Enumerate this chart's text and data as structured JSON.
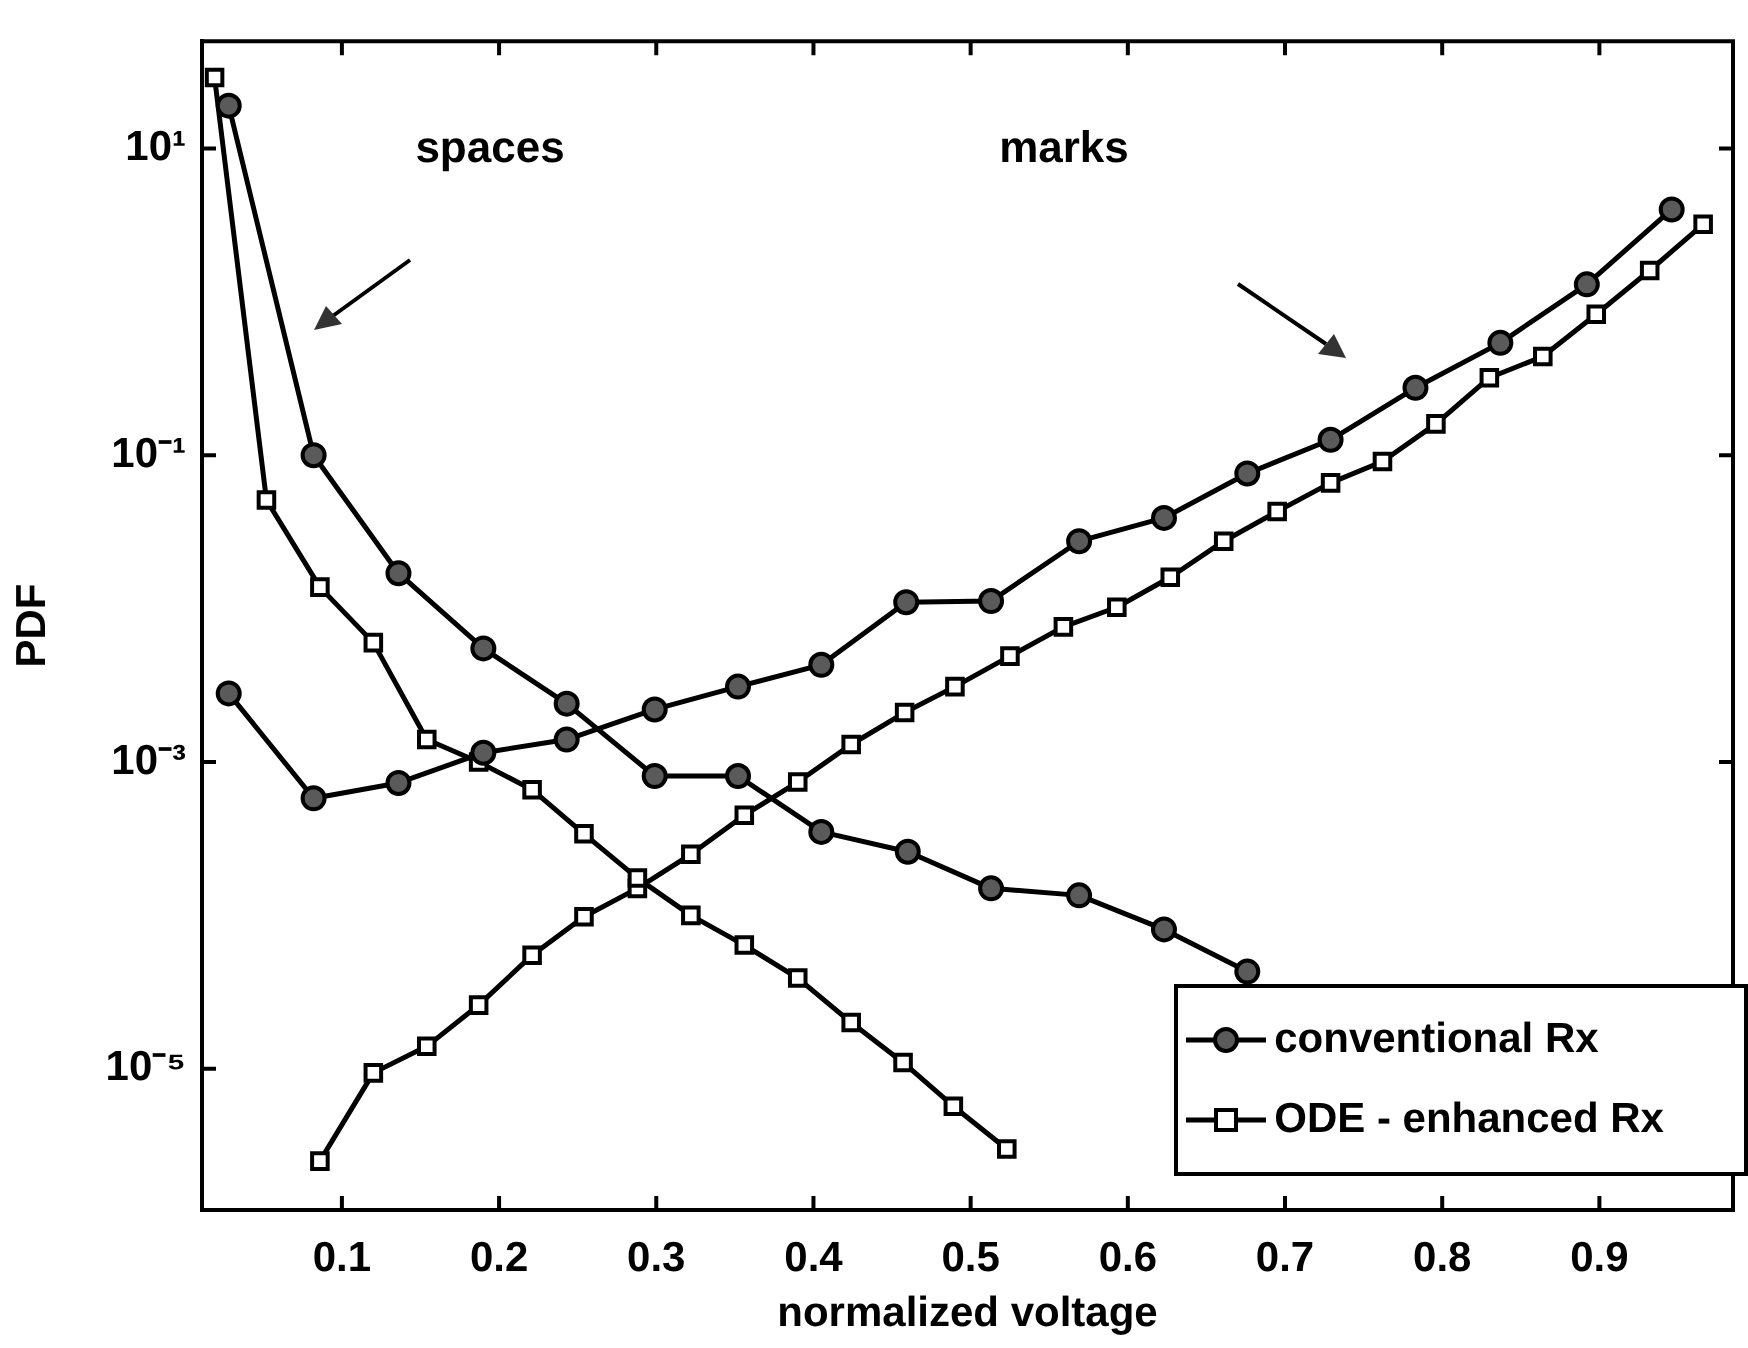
{
  "chart_data": {
    "type": "line",
    "xlabel": "normalized voltage",
    "ylabel": "PDF",
    "log": "y",
    "xlim": [
      0.011,
      0.985
    ],
    "ylim": [
      1.2e-06,
      50
    ],
    "xticks": [
      0.1,
      0.2,
      0.3,
      0.4,
      0.5,
      0.6,
      0.7,
      0.8,
      0.9
    ],
    "yticks": [
      {
        "value": 10,
        "label": "10¹"
      },
      {
        "value": 0.1,
        "label": "10⁻¹"
      },
      {
        "value": 0.001,
        "label": "10⁻³"
      },
      {
        "value": 1e-05,
        "label": "10⁻⁵"
      }
    ],
    "grid": false,
    "legend": "bottom right",
    "line_style": "solid",
    "annotations": [
      "spaces",
      "marks"
    ],
    "series": [
      {
        "name": "conventional Rx",
        "color": "#000000",
        "marker": "circle",
        "x": [
          0.028,
          0.082,
          0.136,
          0.19,
          0.243,
          0.299,
          0.352,
          0.405,
          0.46,
          0.513,
          0.569,
          0.623,
          0.676
        ],
        "values": [
          19,
          0.1,
          0.017,
          0.0055,
          0.0024,
          0.00081,
          0.00081,
          0.00035,
          0.00026,
          0.00015,
          0.000135,
          8.1e-05,
          4.3e-05
        ]
      },
      {
        "color": "#000000",
        "marker": "circle",
        "x": [
          0.028,
          0.082,
          0.136,
          0.19,
          0.243,
          0.299,
          0.352,
          0.405,
          0.459,
          0.513,
          0.569,
          0.623,
          0.676,
          0.729,
          0.783,
          0.837,
          0.892,
          0.946
        ],
        "values": [
          0.0028,
          0.00058,
          0.00073,
          0.00115,
          0.0014,
          0.0022,
          0.0031,
          0.0043,
          0.011,
          0.0112,
          0.0275,
          0.039,
          0.076,
          0.126,
          0.275,
          0.54,
          1.3,
          4
        ]
      },
      {
        "name": "ODE - enhanced Rx",
        "color": "#000000",
        "marker": "square",
        "x": [
          0.019,
          0.052,
          0.086,
          0.12,
          0.154,
          0.187,
          0.221,
          0.254,
          0.288,
          0.322,
          0.356,
          0.39,
          0.424,
          0.457,
          0.489,
          0.523
        ],
        "values": [
          29,
          0.051,
          0.0138,
          0.006,
          0.0014,
          0.001,
          0.00066,
          0.00034,
          0.000175,
          0.0001,
          6.4e-05,
          3.9e-05,
          2e-05,
          1.1e-05,
          5.7e-06,
          3e-06
        ]
      },
      {
        "color": "#000000",
        "marker": "square",
        "x": [
          0.086,
          0.12,
          0.154,
          0.187,
          0.221,
          0.254,
          0.288,
          0.322,
          0.356,
          0.39,
          0.424,
          0.458,
          0.49,
          0.525,
          0.559,
          0.593,
          0.627,
          0.661,
          0.695,
          0.729,
          0.762,
          0.796,
          0.83,
          0.864,
          0.898,
          0.932,
          0.966
        ],
        "values": [
          2.5e-06,
          9.4e-06,
          1.4e-05,
          2.6e-05,
          5.5e-05,
          9.8e-05,
          0.00015,
          0.00025,
          0.00045,
          0.00074,
          0.0013,
          0.0021,
          0.0031,
          0.0049,
          0.0076,
          0.0102,
          0.016,
          0.0275,
          0.043,
          0.066,
          0.091,
          0.16,
          0.32,
          0.44,
          0.83,
          1.6,
          3.2
        ]
      }
    ]
  }
}
